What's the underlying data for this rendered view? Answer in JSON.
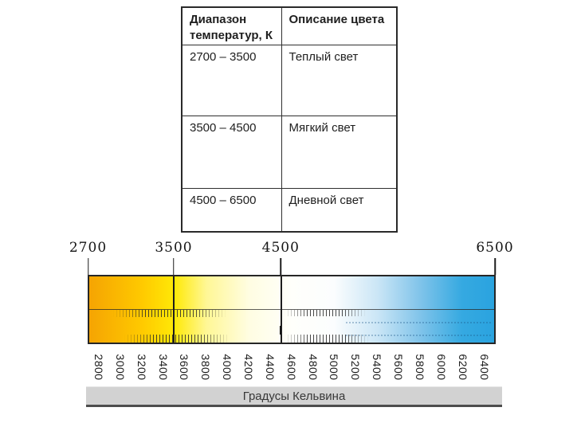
{
  "table": {
    "headers": [
      "Диапазон температур, К",
      "Описание цвета"
    ],
    "rows": [
      {
        "range": "2700 – 3500",
        "description": "Теплый свет"
      },
      {
        "range": "3500 – 4500",
        "description": "Мягкий свет"
      },
      {
        "range": "4500 – 6500",
        "description": "Дневной свет"
      }
    ]
  },
  "scale": {
    "min": 2700,
    "max": 6500,
    "top_labels": [
      2700,
      3500,
      4500,
      6500
    ],
    "inner_lines": [
      3500,
      4500
    ],
    "bottom_ticks": [
      2800,
      3000,
      3200,
      3400,
      3600,
      3800,
      4000,
      4200,
      4400,
      4600,
      4800,
      5000,
      5200,
      5400,
      5600,
      5800,
      6000,
      6200,
      6400
    ],
    "gradient_stops": [
      {
        "k": 2700,
        "color": "#f5a402"
      },
      {
        "k": 3200,
        "color": "#ffca00"
      },
      {
        "k": 3500,
        "color": "#ffe907"
      },
      {
        "k": 3800,
        "color": "#fff795"
      },
      {
        "k": 4200,
        "color": "#fffde2"
      },
      {
        "k": 4600,
        "color": "#fffffb"
      },
      {
        "k": 5000,
        "color": "#fbfdfe"
      },
      {
        "k": 5400,
        "color": "#cbe6f6"
      },
      {
        "k": 5800,
        "color": "#81c4ea"
      },
      {
        "k": 6200,
        "color": "#35a9e1"
      },
      {
        "k": 6500,
        "color": "#2aa3df"
      }
    ],
    "footer_label": "Градусы Кельвина"
  }
}
